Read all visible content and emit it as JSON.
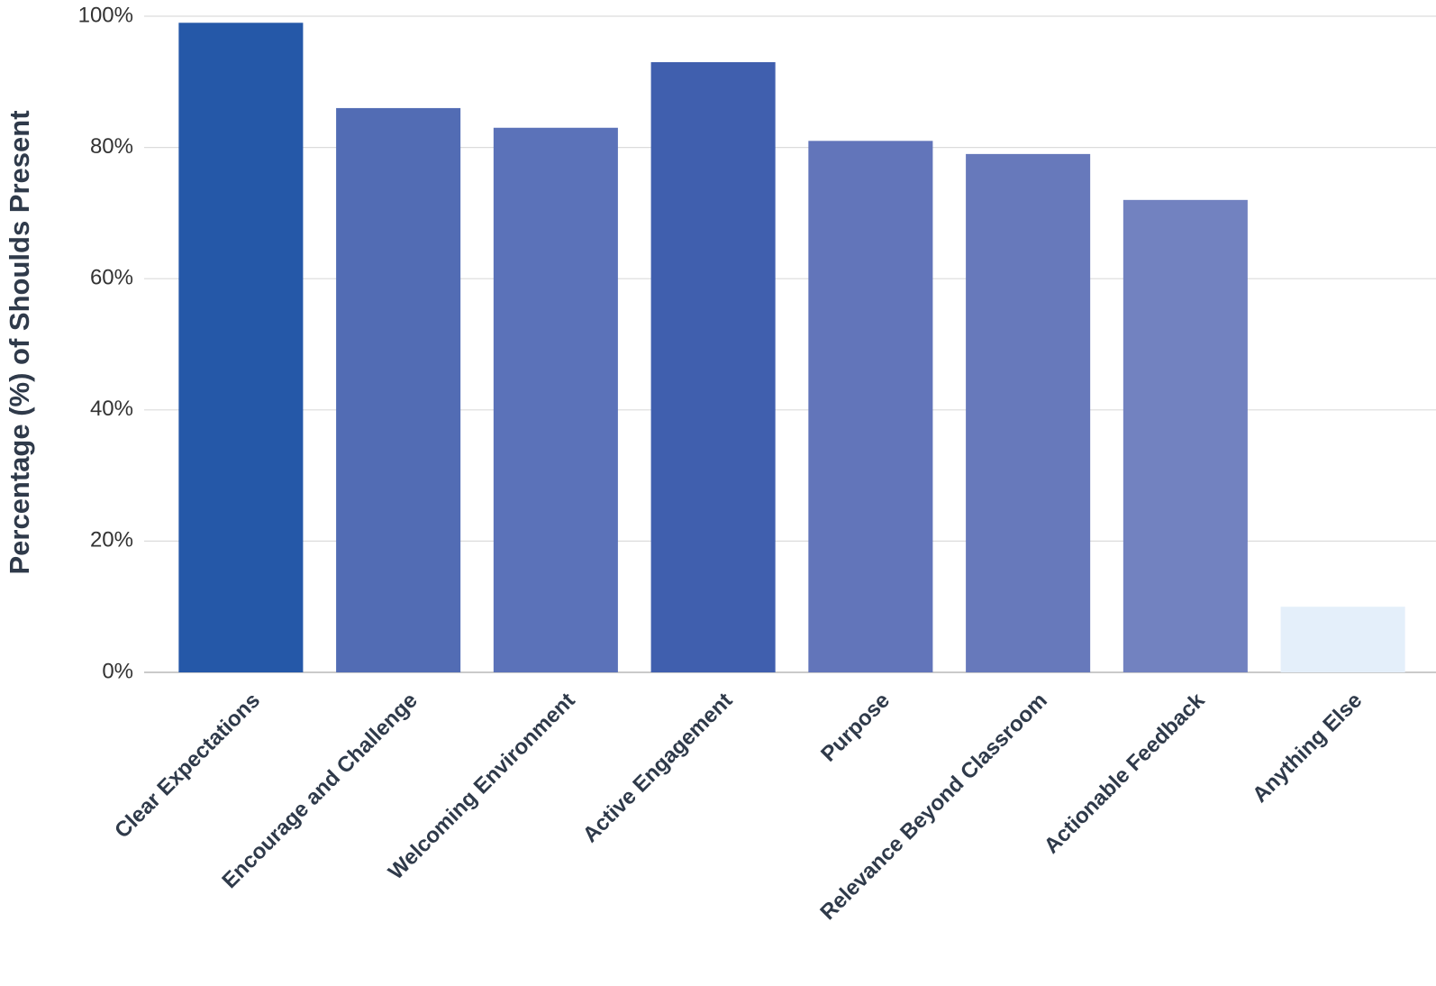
{
  "chart_data": {
    "type": "bar",
    "y_label": "Percentage (%) of Shoulds Present",
    "categories": [
      "Clear Expectations",
      "Encourage and Challenge",
      "Welcoming Environment",
      "Active Engagement",
      "Purpose",
      "Relevance Beyond Classroom",
      "Actionable Feedback",
      "Anything Else"
    ],
    "values": [
      99,
      86,
      83,
      93,
      81,
      79,
      72,
      10
    ],
    "colors": [
      "#2558a8",
      "#526cb4",
      "#5b72b9",
      "#405fae",
      "#6275ba",
      "#6779bb",
      "#7282c0",
      "#e4effa"
    ],
    "ylim": [
      0,
      100
    ],
    "yticks": [
      {
        "value": 0,
        "label": "0%"
      },
      {
        "value": 20,
        "label": "20%"
      },
      {
        "value": 40,
        "label": "40%"
      },
      {
        "value": 60,
        "label": "60%"
      },
      {
        "value": 80,
        "label": "80%"
      },
      {
        "value": 100,
        "label": "100%"
      }
    ],
    "grid": true
  }
}
